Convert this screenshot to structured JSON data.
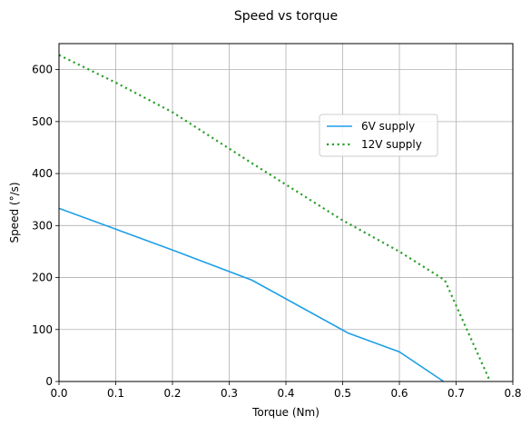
{
  "chart_data": {
    "type": "line",
    "title": "Speed vs torque",
    "xlabel": "Torque (Nm)",
    "ylabel": "Speed (°/s)",
    "xlim": [
      0,
      0.8
    ],
    "ylim": [
      0,
      650
    ],
    "xticks": [
      "0.0",
      "0.1",
      "0.2",
      "0.3",
      "0.4",
      "0.5",
      "0.6",
      "0.7",
      "0.8"
    ],
    "yticks": [
      "0",
      "100",
      "200",
      "300",
      "400",
      "500",
      "600"
    ],
    "grid": true,
    "legend_position": "upper-right",
    "series": [
      {
        "name": "6V supply",
        "color": "#1f9fe8",
        "style": "solid",
        "points": [
          [
            0.0,
            333
          ],
          [
            0.1,
            293
          ],
          [
            0.2,
            253
          ],
          [
            0.34,
            195
          ],
          [
            0.51,
            93
          ],
          [
            0.6,
            57
          ],
          [
            0.678,
            0
          ]
        ]
      },
      {
        "name": "12V supply",
        "color": "#2ca02c",
        "style": "dotted",
        "points": [
          [
            0.0,
            628
          ],
          [
            0.1,
            575
          ],
          [
            0.2,
            518
          ],
          [
            0.34,
            420
          ],
          [
            0.5,
            310
          ],
          [
            0.6,
            250
          ],
          [
            0.68,
            195
          ],
          [
            0.76,
            0
          ]
        ]
      }
    ]
  }
}
